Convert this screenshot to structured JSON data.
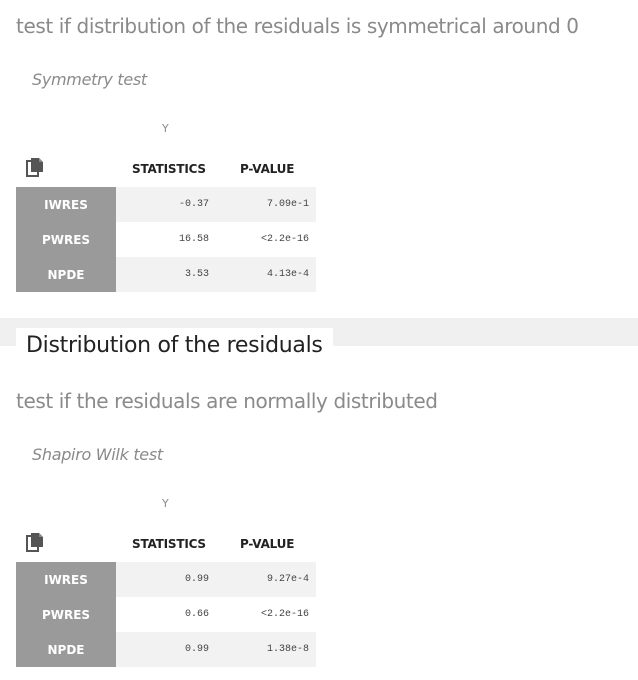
{
  "symmetry": {
    "description": "test if distribution of the residuals is symmetrical around 0",
    "test_name": "Symmetry test",
    "y_label": "Y",
    "columns": [
      "STATISTICS",
      "P-VALUE"
    ],
    "rows": [
      {
        "label": "IWRES",
        "statistic": "-0.37",
        "pvalue": "7.09e-1"
      },
      {
        "label": "PWRES",
        "statistic": "16.58",
        "pvalue": "<2.2e-16"
      },
      {
        "label": "NPDE",
        "statistic": "3.53",
        "pvalue": "4.13e-4"
      }
    ]
  },
  "distribution": {
    "section_title": "Distribution of the residuals",
    "description": "test if the residuals are normally distributed",
    "test_name": "Shapiro Wilk test",
    "y_label": "Y",
    "columns": [
      "STATISTICS",
      "P-VALUE"
    ],
    "rows": [
      {
        "label": "IWRES",
        "statistic": "0.99",
        "pvalue": "9.27e-4"
      },
      {
        "label": "PWRES",
        "statistic": "0.66",
        "pvalue": "<2.2e-16"
      },
      {
        "label": "NPDE",
        "statistic": "0.99",
        "pvalue": "1.38e-8"
      }
    ]
  },
  "icons": {
    "copy": "copy-icon"
  },
  "colors": {
    "row_header_bg": "#9a9a9a",
    "row_header_text": "#ffffff",
    "stripe_bg": "#f2f2f2",
    "muted_text": "#8a8a8a"
  }
}
